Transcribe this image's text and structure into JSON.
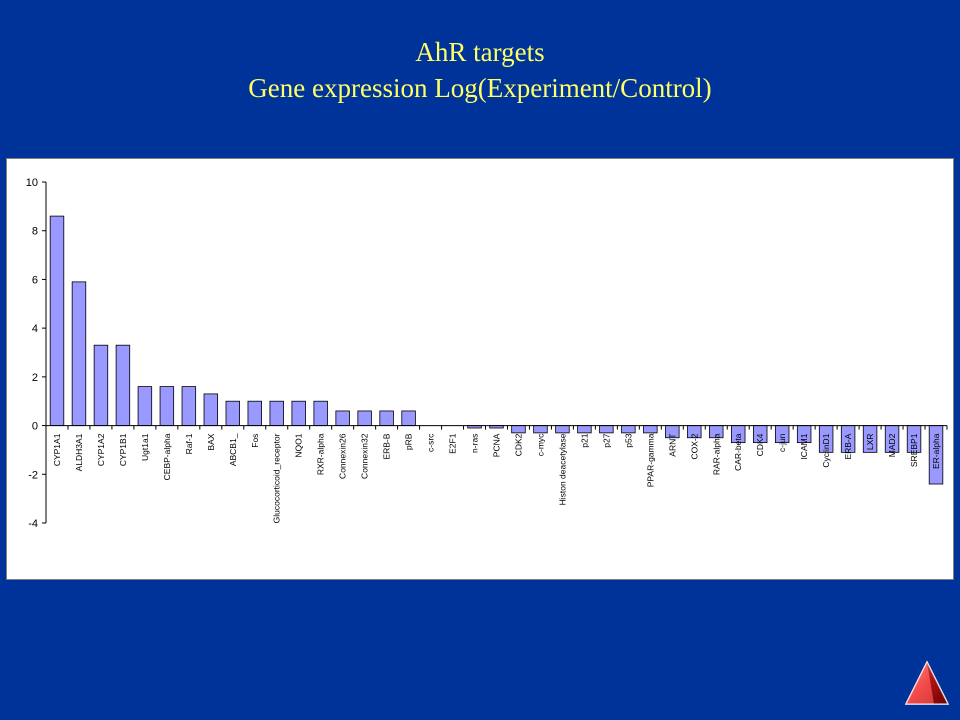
{
  "slide": {
    "title_line1": "AhR targets",
    "title_line2": "Gene expression Log(Experiment/Control)"
  },
  "colors": {
    "background": "#003399",
    "title": "#FFFF66",
    "bar_fill": "#9999FF",
    "bar_stroke": "#000000"
  },
  "nav": {
    "icon": "triangle-nav-icon"
  },
  "chart_data": {
    "type": "bar",
    "title": "",
    "xlabel": "",
    "ylabel": "",
    "ylim": [
      -4,
      10
    ],
    "yticks": [
      "10",
      "8",
      "6",
      "4",
      "2",
      "0",
      "-2",
      "-4"
    ],
    "ytick_values": [
      10,
      8,
      6,
      4,
      2,
      0,
      -2,
      -4
    ],
    "grid": false,
    "legend": "none",
    "categories": [
      "CYP1A1",
      "ALDH3A1",
      "CYP1A2",
      "CYP1B1",
      "Ugt1a1",
      "CEBP-alpha",
      "Raf-1",
      "BAX",
      "ABCB1_",
      "Fos",
      "Glucocorticoid_receptor",
      "NQO1",
      "RXR-alpha",
      "Connexin26",
      "Connexin32",
      "ERB-B",
      "pRB",
      "c-src",
      "E2F1",
      "n-ras",
      "PCNA",
      "CDK2",
      "c-myc",
      "Histon deacetylase",
      "p21",
      "p27",
      "p53",
      "PPAR-gamma",
      "ARNT",
      "COX-2",
      "RAR-alpha",
      "CAR-beta",
      "CDK4",
      "c-jun",
      "ICAM1",
      "CyclinD1",
      "ERB-A",
      "LXR",
      "MAD2",
      "SREBP1",
      "ER-alpha"
    ],
    "values": [
      8.6,
      5.9,
      3.3,
      3.3,
      1.6,
      1.6,
      1.6,
      1.3,
      1.0,
      1.0,
      1.0,
      1.0,
      1.0,
      0.6,
      0.6,
      0.6,
      0.6,
      0.0,
      0.0,
      -0.1,
      -0.1,
      -0.3,
      -0.3,
      -0.3,
      -0.3,
      -0.3,
      -0.3,
      -0.3,
      -0.5,
      -0.5,
      -0.5,
      -0.7,
      -0.7,
      -0.7,
      -0.7,
      -1.1,
      -1.1,
      -1.1,
      -1.1,
      -1.1,
      -2.4
    ]
  }
}
